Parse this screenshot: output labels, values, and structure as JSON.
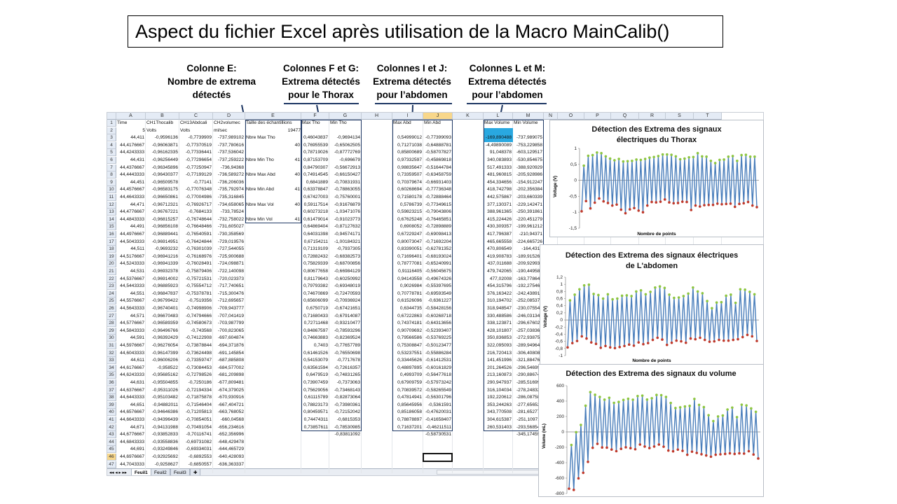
{
  "title": "Aspect du fichier Excel après utilisation de la Macro MainCalib()",
  "annotations": [
    {
      "lines": [
        "Colonne E:",
        "Nombre de extrema",
        "détectés"
      ]
    },
    {
      "lines": [
        "Colonnes F et G:",
        "Extrema détectés",
        "pour le Thorax"
      ]
    },
    {
      "lines": [
        "Colonnes I et J:",
        "Extrema détectés",
        "pour l’abdomen"
      ]
    },
    {
      "lines": [
        "Colonnes L et M:",
        "Extrema détectés",
        "pour l’abdomen"
      ]
    }
  ],
  "spreadsheet": {
    "columns": [
      "A",
      "B",
      "C",
      "D",
      "E",
      "F",
      "G",
      "H",
      "I",
      "J",
      "K",
      "L",
      "M",
      "N",
      "O",
      "P",
      "Q",
      "R",
      "S",
      "T"
    ],
    "selected_column": "J",
    "selected_row": 46,
    "row_numbers": [
      1,
      2,
      3,
      4,
      5,
      6,
      7,
      8,
      9,
      10,
      11,
      12,
      13,
      14,
      15,
      16,
      17,
      18,
      19,
      20,
      21,
      22,
      23,
      24,
      25,
      26,
      27,
      28,
      29,
      30,
      31,
      32,
      33,
      34,
      35,
      36,
      37,
      38,
      39,
      40,
      41,
      42,
      43,
      44,
      45,
      46,
      47
    ],
    "headers": {
      "A": "Time",
      "B": "CH1Thocalib",
      "C": "CH13Abdcali",
      "D": "CH2volumec",
      "E": "Taille des échantillions",
      "F": "Max Tho",
      "G": "Min Tho",
      "I": "Max Abd",
      "J": "Min Abd",
      "L": "Max Volume",
      "M": "Min Volume"
    },
    "row2": {
      "A": "5",
      "B": "Volts",
      "C": "Volts",
      "D": "ml/sec",
      "E": "19477"
    },
    "e_labels": [
      {
        "row": 3,
        "text": "Nbre Max Tho"
      },
      {
        "row": 6,
        "text": "Nbre Min Tho"
      },
      {
        "row": 8,
        "text": "Nbre Max Abd"
      },
      {
        "row": 10,
        "text": "Nbre Min Abd"
      },
      {
        "row": 12,
        "text": "Nbre Max Vol"
      },
      {
        "row": 14,
        "text": "Nbre Min Vol"
      }
    ],
    "e_counts": [
      {
        "row": 4,
        "text": "40"
      },
      {
        "row": 6,
        "text": "41"
      },
      {
        "row": 8,
        "text": "40"
      },
      {
        "row": 10,
        "text": "41"
      },
      {
        "row": 12,
        "text": "40"
      },
      {
        "row": 14,
        "text": "41"
      }
    ],
    "col_A": [
      "44,411",
      "44,4176667",
      "44,4243333",
      "44,431",
      "44,4376667",
      "44,4443333",
      "44,451",
      "44,4576667",
      "44,4643333",
      "44,471",
      "44,4776667",
      "44,4843333",
      "44,491",
      "44,4976667",
      "44,5043333",
      "44,511",
      "44,5176667",
      "44,5243333",
      "44,531",
      "44,5376667",
      "44,5443333",
      "44,551",
      "44,5576667",
      "44,5643333",
      "44,571",
      "44,5776667",
      "44,5843333",
      "44,591",
      "44,5976667",
      "44,6043333",
      "44,611",
      "44,6176667",
      "44,6243333",
      "44,631",
      "44,6376667",
      "44,6443333",
      "44,651",
      "44,6576667",
      "44,6643333",
      "44,671",
      "44,6776667",
      "44,6843333",
      "44,691",
      "44,6976667",
      "44,7043333"
    ],
    "col_B": [
      "-0,9596136",
      "-0,96063871",
      "-0,96162335",
      "-0,96256449",
      "-0,96345896",
      "-0,96430377",
      "-0,96509578",
      "-0,96583175",
      "-0,96650861",
      "-0,96712321",
      "-0,96767221",
      "-0,96815257",
      "-0,96856108",
      "-0,96889441",
      "-0,96914951",
      "-0,9693232",
      "-0,96941216",
      "-0,96941339",
      "-0,96932378",
      "-0,96914002",
      "-0,96885923",
      "-0,96847837",
      "-0,96799422",
      "-0,96740401",
      "-0,96670483",
      "-0,96589359",
      "-0,96496766",
      "-0,96392429",
      "-0,96276054",
      "-0,96147399",
      "-0,96006206",
      "-0,958522",
      "-0,95685162",
      "-0,95504855",
      "-0,95311026",
      "-0,95103482",
      "-0,94882011",
      "-0,94646386",
      "-0,94396439",
      "-0,94131988",
      "-0,93852833",
      "-0,93558836",
      "-0,93249846",
      "-0,92925692",
      "-0,9258627"
    ],
    "col_C": [
      "-0,7739909",
      "-0,77370519",
      "-0,77336441",
      "-0,77296654",
      "-0,77250947",
      "-0,77199129",
      "-0,77141",
      "-0,77076348",
      "-0,77004986",
      "-0,76926717",
      "-0,7684133",
      "-0,76748644",
      "-0,76648466",
      "-0,76540591",
      "-0,76424844",
      "-0,76301039",
      "-0,76168976",
      "-0,76028491",
      "-0,75879406",
      "-0,75721531",
      "-0,75554712",
      "-0,75378781",
      "-0,7519356",
      "-0,74998906",
      "-0,74794666",
      "-0,74580673",
      "-0,743568",
      "-0,74122908",
      "-0,73878844",
      "-0,73624498",
      "-0,73359747",
      "-0,73084453",
      "-0,72798526",
      "-0,7250186",
      "-0,72194334",
      "-0,71875878",
      "-0,71546404",
      "-0,71205813",
      "-0,70854051",
      "-0,70491054",
      "-0,70116741",
      "-0,69731082",
      "-0,69334031",
      "-0,6892553",
      "-0,6850557"
    ],
    "col_D": [
      "-737,989102",
      "-737,780616",
      "-737,536042",
      "-737,259222",
      "-736,94368",
      "-736,589272",
      "-736,206036",
      "-735,792974",
      "-735,316845",
      "-734,658065",
      "-733,78524",
      "-732,758022",
      "-731,605027",
      "-730,358569",
      "-729,019576",
      "-727,544055",
      "-725,900688",
      "-724,098871",
      "-722,140098",
      "-720,023373",
      "-717,740651",
      "-715,300476",
      "-712,695657",
      "-709,943777",
      "-707,041419",
      "-703,987799",
      "-700,823065",
      "-697,604874",
      "-694,371876",
      "-691,145854",
      "-687,885808",
      "-684,577002",
      "-681,209898",
      "-677,809481",
      "-674,379025",
      "-670,930916",
      "-667,404721",
      "-663,768052",
      "-660,04568",
      "-656,234616",
      "-652,356996",
      "-648,429478",
      "-644,465729",
      "-640,428093",
      "-636,363337"
    ],
    "col_F": [
      "0,46043837",
      "0,76955539",
      "0,78719026",
      "0,87153709",
      "0,84790307",
      "0,74914545",
      "0,6841889",
      "0,63378847",
      "0,67427003",
      "0,59117514",
      "0,60273218",
      "0,61479014",
      "0,64869404",
      "0,64031398",
      "0,67154211",
      "0,71319109",
      "0,72882432",
      "0,75829339",
      "0,80677658",
      "0,81179643",
      "0,79793382",
      "0,74670869",
      "0,65606099",
      "0,6750719",
      "0,71680433",
      "0,72711468",
      "0,84867597",
      "0,74663883",
      "0,7403",
      "0,61461526",
      "0,54153079",
      "0,63561594",
      "0,6479519",
      "0,73907459",
      "0,75629056",
      "0,61115789",
      "0,78823173",
      "0,80459571",
      "0,74474311",
      "0,73857611"
    ],
    "col_G": [
      "-0,9694134",
      "-0,65062505",
      "-0,87772769",
      "-0,696679",
      "-0,56672913",
      "-0,66150427",
      "-0,70831931",
      "-0,78863055",
      "-0,75760001",
      "-0,91676879",
      "-1,03471076",
      "-0,91023773",
      "-0,87127632",
      "-0,94574171",
      "-1,00184321",
      "-0,7937305",
      "-0,68382573",
      "-0,68700856",
      "-0,66984129",
      "-0,60250992",
      "-0,69348019",
      "-0,72470593",
      "-0,70936924",
      "-0,67421651",
      "-0,67914087",
      "-0,93210477",
      "-0,78593296",
      "-0,82369524",
      "-0,77657789",
      "-0,76550698",
      "-0,7717678",
      "-0,72616357",
      "-0,74831265",
      "-0,7373063",
      "-0,73468143",
      "-0,82873064",
      "-0,73980361",
      "-0,72152042",
      "-0,6815353",
      "-0,78530985",
      "-0,83811092"
    ],
    "col_I": [
      "0,54999012",
      "0,71271038",
      "0,85800689",
      "0,97332597",
      "0,98835647",
      "0,73359507",
      "0,70379674",
      "0,60268694",
      "0,71580178",
      "0,5786739",
      "0,59823215",
      "0,67625248",
      "0,6908052",
      "0,67229247",
      "0,80073047",
      "0,83390051",
      "0,71696401",
      "0,78777081",
      "0,91116405",
      "0,94143558",
      "0,9026984",
      "0,70778781",
      "0,61526096",
      "0,6344735",
      "0,67222863",
      "0,74374181",
      "0,90709692",
      "0,79566586",
      "0,75308847",
      "0,53237551",
      "0,33445626",
      "0,48897895",
      "0,4993709",
      "0,67909759",
      "0,70839572",
      "0,47814941",
      "0,85645956",
      "0,85186058",
      "0,78878897",
      "0,71637201"
    ],
    "col_J": [
      "-0,77399093",
      "-0,64888781",
      "-0,58707827",
      "-0,45869818",
      "-0,51644784",
      "-0,63458759",
      "-0,66931403",
      "-0,77736348",
      "-0,72888464",
      "-0,77349615",
      "-0,79043806",
      "-0,76465851",
      "-0,72898889",
      "-0,69098413",
      "-0,71692204",
      "-0,62781352",
      "-0,68193024",
      "-0,65240991",
      "-0,56045675",
      "-0,49674326",
      "-0,55397695",
      "-0,69593549",
      "-0,6361227",
      "-0,58428156",
      "-0,60268718",
      "-0,64313656",
      "-0,52393407",
      "-0,53769225",
      "-0,50123477",
      "-0,55886284",
      "-0,61412531",
      "-0,60161829",
      "-0,56477618",
      "-0,57973242",
      "-0,58265549",
      "-0,56301796",
      "-0,5361591",
      "-0,47620031",
      "-0,41658407",
      "-0,46211511",
      "-0,58730531"
    ],
    "col_L": [
      "-169,890488",
      "-4,49890089",
      "91,048378",
      "340,083893",
      "517,491333",
      "481,960815",
      "454,334656",
      "418,742798",
      "442,575867",
      "377,130371",
      "388,961365",
      "415,224426",
      "430,309357",
      "417,796387",
      "465,665558",
      "470,806549",
      "419,908783",
      "437,011688",
      "479,742065",
      "477,02008",
      "454,315796",
      "376,163422",
      "310,194702",
      "318,948547",
      "330,488586",
      "338,123871",
      "428,101807",
      "350,836853",
      "322,095093",
      "216,720413",
      "141,451996",
      "201,264526",
      "213,160873",
      "290,947937",
      "316,104034",
      "192,220612",
      "353,244263",
      "343,770508",
      "304,615387",
      "260,531403"
    ],
    "col_M": [
      "-737,989075",
      "-753,229858",
      "-603,129517",
      "-530,854675",
      "-388,920929",
      "-205,928986",
      "-154,912247",
      "-202,356384",
      "-203,660339",
      "-229,142471",
      "-250,391861",
      "-220,451279",
      "-199,961212",
      "-210,94371",
      "-224,665726",
      "-164,4319",
      "-189,915268",
      "-209,929932",
      "-190,449585",
      "-163,778641",
      "-192,275467",
      "-242,438919",
      "-252,085373",
      "-230,075546",
      "-246,031342",
      "-296,676025",
      "-257,038361",
      "-272,938751",
      "-289,949646",
      "-306,408081",
      "-321,884766",
      "-296,546997",
      "-290,886749",
      "-285,516998",
      "-278,248322",
      "-286,087585",
      "-277,656525",
      "-281,652771",
      "-251,109711",
      "-293,568542",
      "-345,174591"
    ],
    "sheet_tabs": [
      "Feuil1",
      "Feuil2",
      "Feuil3"
    ],
    "active_tab": "Feuil1"
  },
  "colors": {
    "series": "#4a7ebb",
    "max_marker": "#8dc63f",
    "min_marker": "#c0392b",
    "annotation_box": "#1f3864",
    "highlight": "#29a8e0"
  },
  "chart_data": [
    {
      "type": "line",
      "title": "Détection des Extrema des signaux électriques du Thorax",
      "ylabel": "Voltage (V)",
      "xlabel": "Nombre de points",
      "ylim": [
        -1.5,
        1
      ],
      "yticks": [
        "1",
        "0,5",
        "0",
        "-0,5",
        "-1",
        "-1,5"
      ],
      "cycles": 40,
      "max_values": [
        0.46,
        0.77,
        0.79,
        0.87,
        0.85,
        0.75,
        0.68,
        0.63,
        0.67,
        0.59,
        0.6,
        0.61,
        0.65,
        0.64,
        0.67,
        0.71,
        0.73,
        0.76,
        0.81,
        0.81,
        0.8,
        0.75,
        0.66,
        0.68,
        0.72,
        0.73,
        0.85,
        0.75,
        0.74,
        0.61,
        0.54,
        0.64,
        0.65,
        0.74,
        0.76,
        0.61,
        0.79,
        0.8,
        0.74,
        0.74
      ],
      "min_values": [
        -0.97,
        -0.65,
        -0.88,
        -0.7,
        -0.57,
        -0.66,
        -0.71,
        -0.79,
        -0.76,
        -0.92,
        -1.03,
        -0.91,
        -0.87,
        -0.95,
        -1.0,
        -0.79,
        -0.68,
        -0.69,
        -0.67,
        -0.6,
        -0.69,
        -0.72,
        -0.71,
        -0.67,
        -0.68,
        -0.93,
        -0.79,
        -0.82,
        -0.78,
        -0.77,
        -0.77,
        -0.73,
        -0.75,
        -0.74,
        -0.73,
        -0.83,
        -0.74,
        -0.72,
        -0.68,
        -0.79,
        -0.84
      ],
      "series": [
        {
          "name": "Max Tho"
        },
        {
          "name": "Min Tho"
        }
      ]
    },
    {
      "type": "line",
      "title": "Détection des Extrema des signaux électriques de L'abdomen",
      "ylabel": "Voltage (V)",
      "xlabel": "Nombre de points",
      "ylim": [
        -1,
        1.2
      ],
      "yticks": [
        "1,2",
        "1",
        "0,8",
        "0,6",
        "0,4",
        "0,2",
        "0",
        "-0,2",
        "-0,4",
        "-0,6",
        "-0,8",
        "-1"
      ],
      "cycles": 40,
      "max_values": [
        0.55,
        0.71,
        0.86,
        0.97,
        0.99,
        0.73,
        0.7,
        0.6,
        0.72,
        0.58,
        0.6,
        0.68,
        0.69,
        0.67,
        0.8,
        0.83,
        0.72,
        0.79,
        0.91,
        0.94,
        0.9,
        0.71,
        0.62,
        0.63,
        0.67,
        0.74,
        0.91,
        0.8,
        0.75,
        0.53,
        0.33,
        0.49,
        0.5,
        0.68,
        0.71,
        0.48,
        0.86,
        0.85,
        0.79,
        0.72
      ],
      "min_values": [
        -0.77,
        -0.65,
        -0.59,
        -0.46,
        -0.52,
        -0.63,
        -0.67,
        -0.78,
        -0.73,
        -0.77,
        -0.79,
        -0.76,
        -0.73,
        -0.69,
        -0.72,
        -0.63,
        -0.68,
        -0.65,
        -0.56,
        -0.5,
        -0.55,
        -0.7,
        -0.64,
        -0.58,
        -0.6,
        -0.64,
        -0.52,
        -0.54,
        -0.5,
        -0.56,
        -0.61,
        -0.6,
        -0.56,
        -0.58,
        -0.58,
        -0.56,
        -0.54,
        -0.48,
        -0.42,
        -0.46,
        -0.59
      ],
      "series": [
        {
          "name": "Max Abd"
        },
        {
          "name": "Min Abd"
        }
      ]
    },
    {
      "type": "line",
      "title": "Détection des Extrema des signaux du volume",
      "ylabel": "Volume (mL)",
      "xlabel": "",
      "ylim": [
        -800,
        600
      ],
      "yticks": [
        "600",
        "400",
        "200",
        "0",
        "-200",
        "-400",
        "-600",
        "-800"
      ],
      "cycles": 40,
      "max_values": [
        -170,
        -4,
        91,
        340,
        517,
        482,
        454,
        419,
        443,
        377,
        389,
        415,
        430,
        418,
        466,
        471,
        420,
        437,
        480,
        477,
        454,
        376,
        310,
        319,
        330,
        338,
        428,
        351,
        322,
        217,
        141,
        201,
        213,
        291,
        316,
        192,
        353,
        344,
        305,
        261
      ],
      "min_values": [
        -738,
        -753,
        -603,
        -531,
        -389,
        -206,
        -155,
        -202,
        -204,
        -229,
        -250,
        -220,
        -200,
        -211,
        -225,
        -164,
        -190,
        -210,
        -190,
        -164,
        -192,
        -242,
        -252,
        -230,
        -246,
        -297,
        -257,
        -273,
        -290,
        -306,
        -322,
        -297,
        -291,
        -286,
        -278,
        -286,
        -278,
        -282,
        -251,
        -294,
        -345
      ],
      "series": [
        {
          "name": "Max Volume"
        },
        {
          "name": "Min Volume"
        }
      ]
    }
  ]
}
